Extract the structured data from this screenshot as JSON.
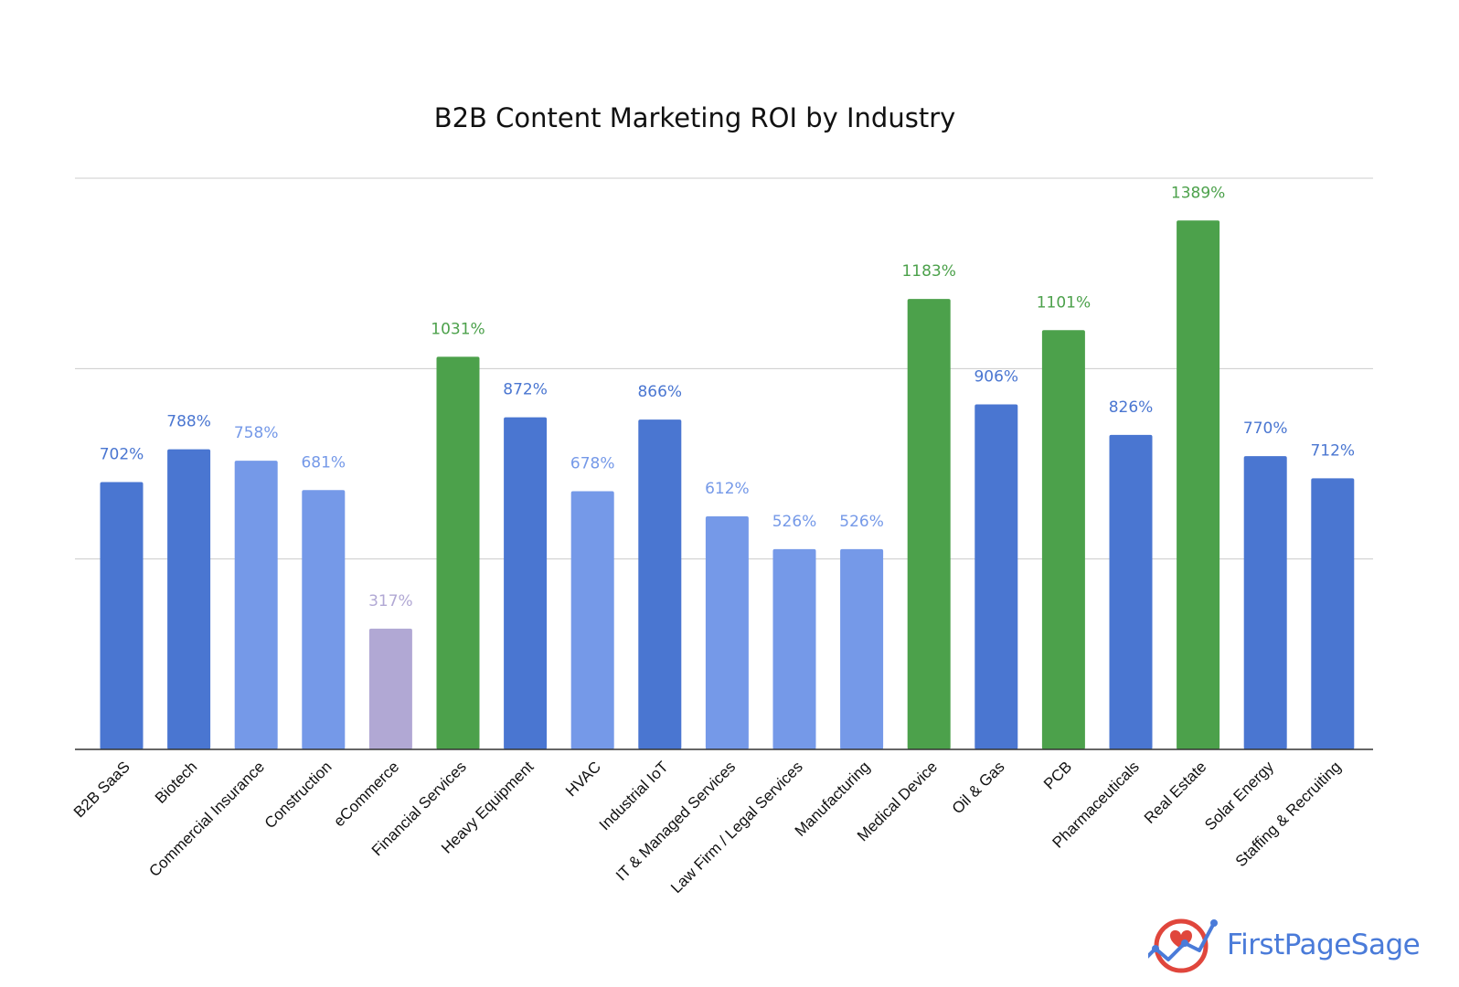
{
  "chart_data": {
    "type": "bar",
    "title": "B2B Content Marketing ROI by Industry",
    "xlabel": "",
    "ylabel": "",
    "ylim": [
      0,
      1500
    ],
    "grid": true,
    "value_suffix": "%",
    "categories": [
      "B2B SaaS",
      "Biotech",
      "Commercial Insurance",
      "Construction",
      "eCommerce",
      "Financial Services",
      "Heavy Equipment",
      "HVAC",
      "Industrial IoT",
      "IT & Managed Services",
      "Law Firm / Legal Services",
      "Manufacturing",
      "Medical Device",
      "Oil & Gas",
      "PCB",
      "Pharmaceuticals",
      "Real Estate",
      "Solar Energy",
      "Staffing & Recruiting"
    ],
    "values": [
      702,
      788,
      758,
      681,
      317,
      1031,
      872,
      678,
      866,
      612,
      526,
      526,
      1183,
      906,
      1101,
      826,
      1389,
      770,
      712
    ],
    "value_labels": [
      "702%",
      "788%",
      "758%",
      "681%",
      "317%",
      "1031%",
      "872%",
      "678%",
      "866%",
      "612%",
      "526%",
      "526%",
      "1183%",
      "906%",
      "1101%",
      "826%",
      "1389%",
      "770%",
      "712%"
    ],
    "colors": [
      "#4a76d1",
      "#4a76d1",
      "#7599e8",
      "#7599e8",
      "#b1a8d4",
      "#4ca14b",
      "#4a76d1",
      "#7599e8",
      "#4a76d1",
      "#7599e8",
      "#7599e8",
      "#7599e8",
      "#4ca14b",
      "#4a76d1",
      "#4ca14b",
      "#4a76d1",
      "#4ca14b",
      "#4a76d1",
      "#4a76d1"
    ],
    "label_colors": [
      "#4a76d1",
      "#4a76d1",
      "#7599e8",
      "#7599e8",
      "#b1a8d4",
      "#4ca14b",
      "#4a76d1",
      "#7599e8",
      "#4a76d1",
      "#7599e8",
      "#7599e8",
      "#7599e8",
      "#4ca14b",
      "#4a76d1",
      "#4ca14b",
      "#4a76d1",
      "#4ca14b",
      "#4a76d1",
      "#4a76d1"
    ]
  },
  "logo": {
    "text": "FirstPageSage",
    "colors": {
      "ring": "#e0463c",
      "line": "#4a7bd9"
    }
  }
}
